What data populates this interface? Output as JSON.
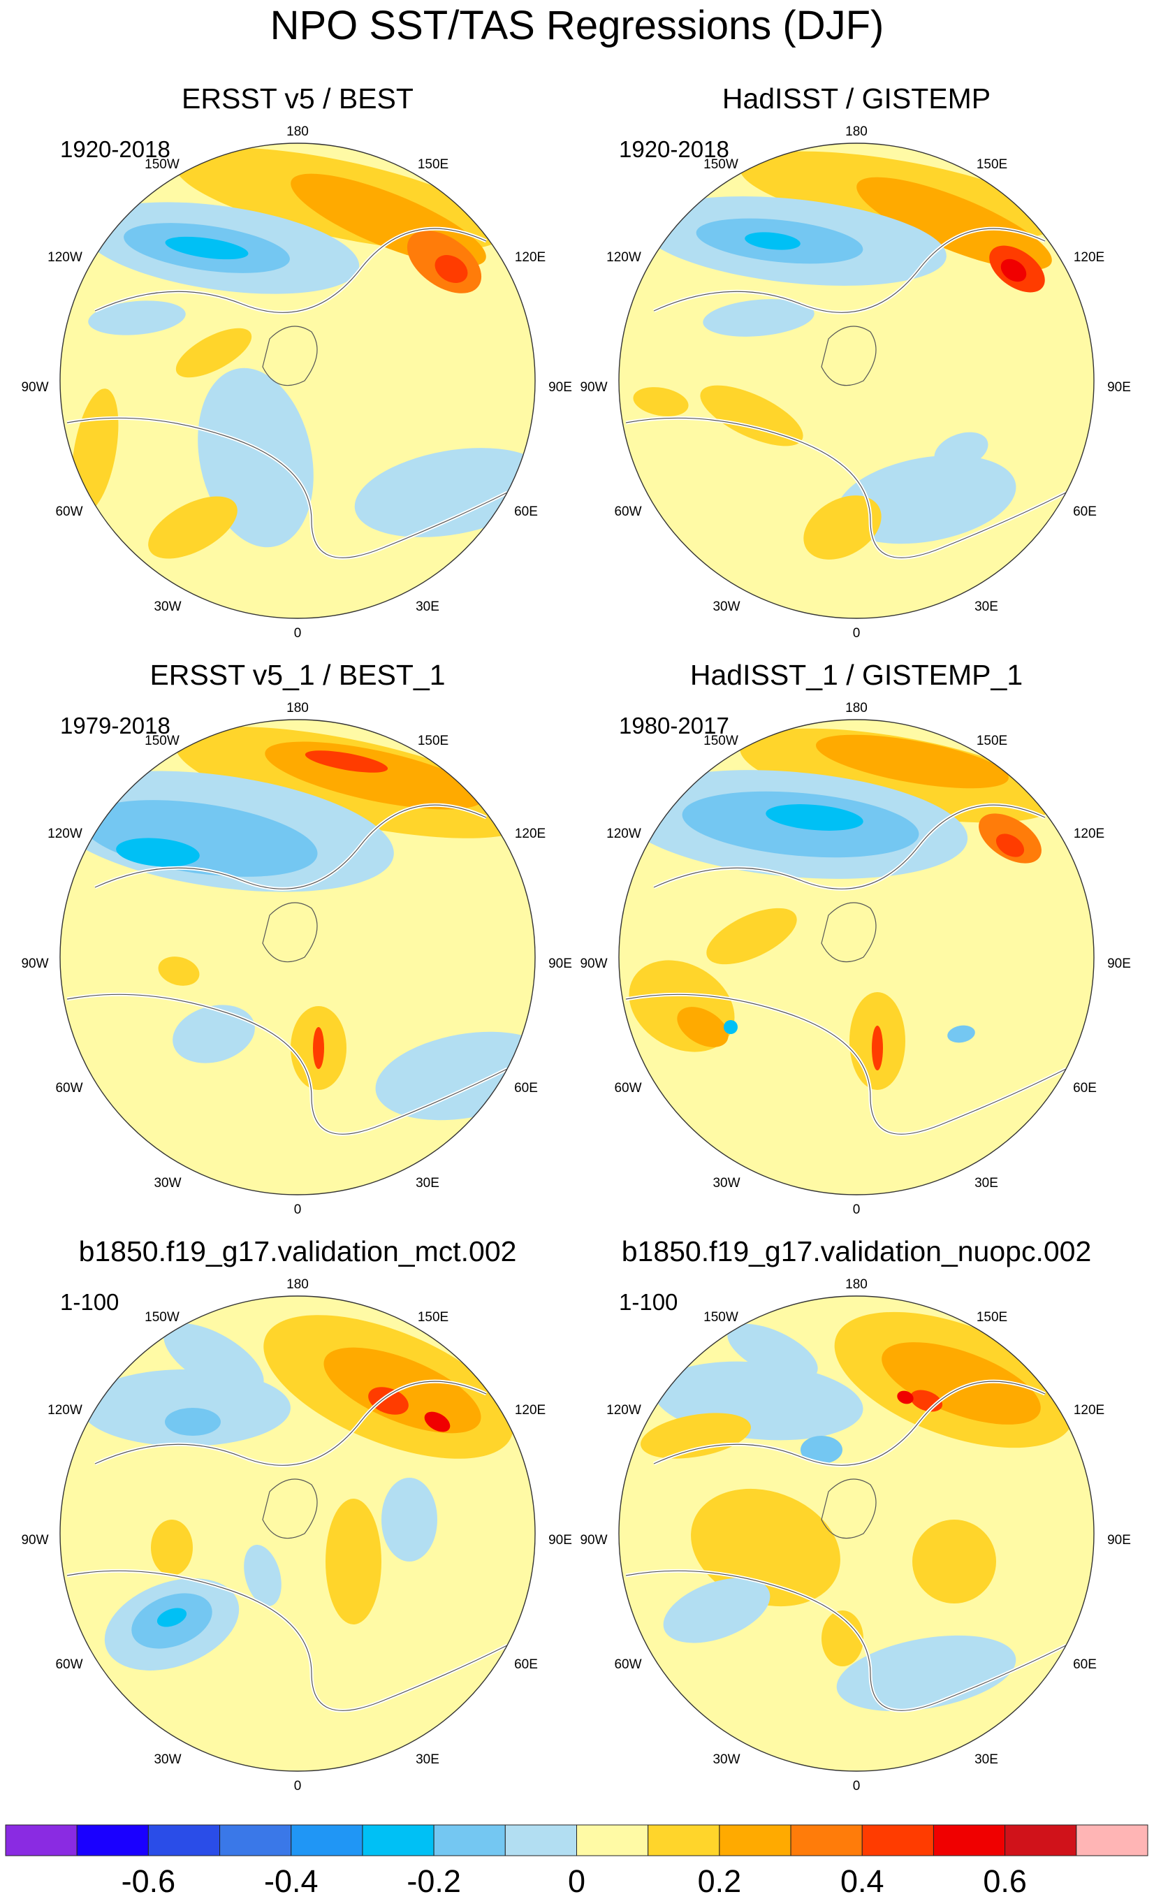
{
  "chart_data": {
    "type": "polar-stereographic-maps",
    "title": "NPO SST/TAS Regressions (DJF)",
    "panels": [
      {
        "title": "ERSST v5 / BEST",
        "period": "1920-2018"
      },
      {
        "title": "HadISST / GISTEMP",
        "period": "1920-2018"
      },
      {
        "title": "ERSST v5_1 / BEST_1",
        "period": "1979-2018"
      },
      {
        "title": "HadISST_1 / GISTEMP_1",
        "period": "1980-2017"
      },
      {
        "title": "b1850.f19_g17.validation_mct.002",
        "period": "1-100"
      },
      {
        "title": "b1850.f19_g17.validation_nuopc.002",
        "period": "1-100"
      }
    ],
    "longitude_labels": [
      "180",
      "150E",
      "120E",
      "90E",
      "60E",
      "30E",
      "0",
      "30W",
      "60W",
      "90W",
      "120W",
      "150W"
    ],
    "colorbar": {
      "colors": [
        "#8a2be2",
        "#1a00ff",
        "#2a4de8",
        "#3a78e8",
        "#2096f5",
        "#00c0f5",
        "#74c7f2",
        "#b2def2",
        "#fffaa5",
        "#ffd52b",
        "#ffaa00",
        "#ff7c0a",
        "#ff3c00",
        "#f00000",
        "#d0121a",
        "#ffb5b5"
      ],
      "tick_values": [
        -0.6,
        -0.4,
        -0.2,
        0,
        0.2,
        0.4,
        0.6
      ],
      "tick_labels": [
        "-0.6",
        "-0.4",
        "-0.2",
        "0",
        "0.2",
        "0.4",
        "0.6"
      ],
      "range": [
        -0.8,
        0.8
      ]
    }
  }
}
